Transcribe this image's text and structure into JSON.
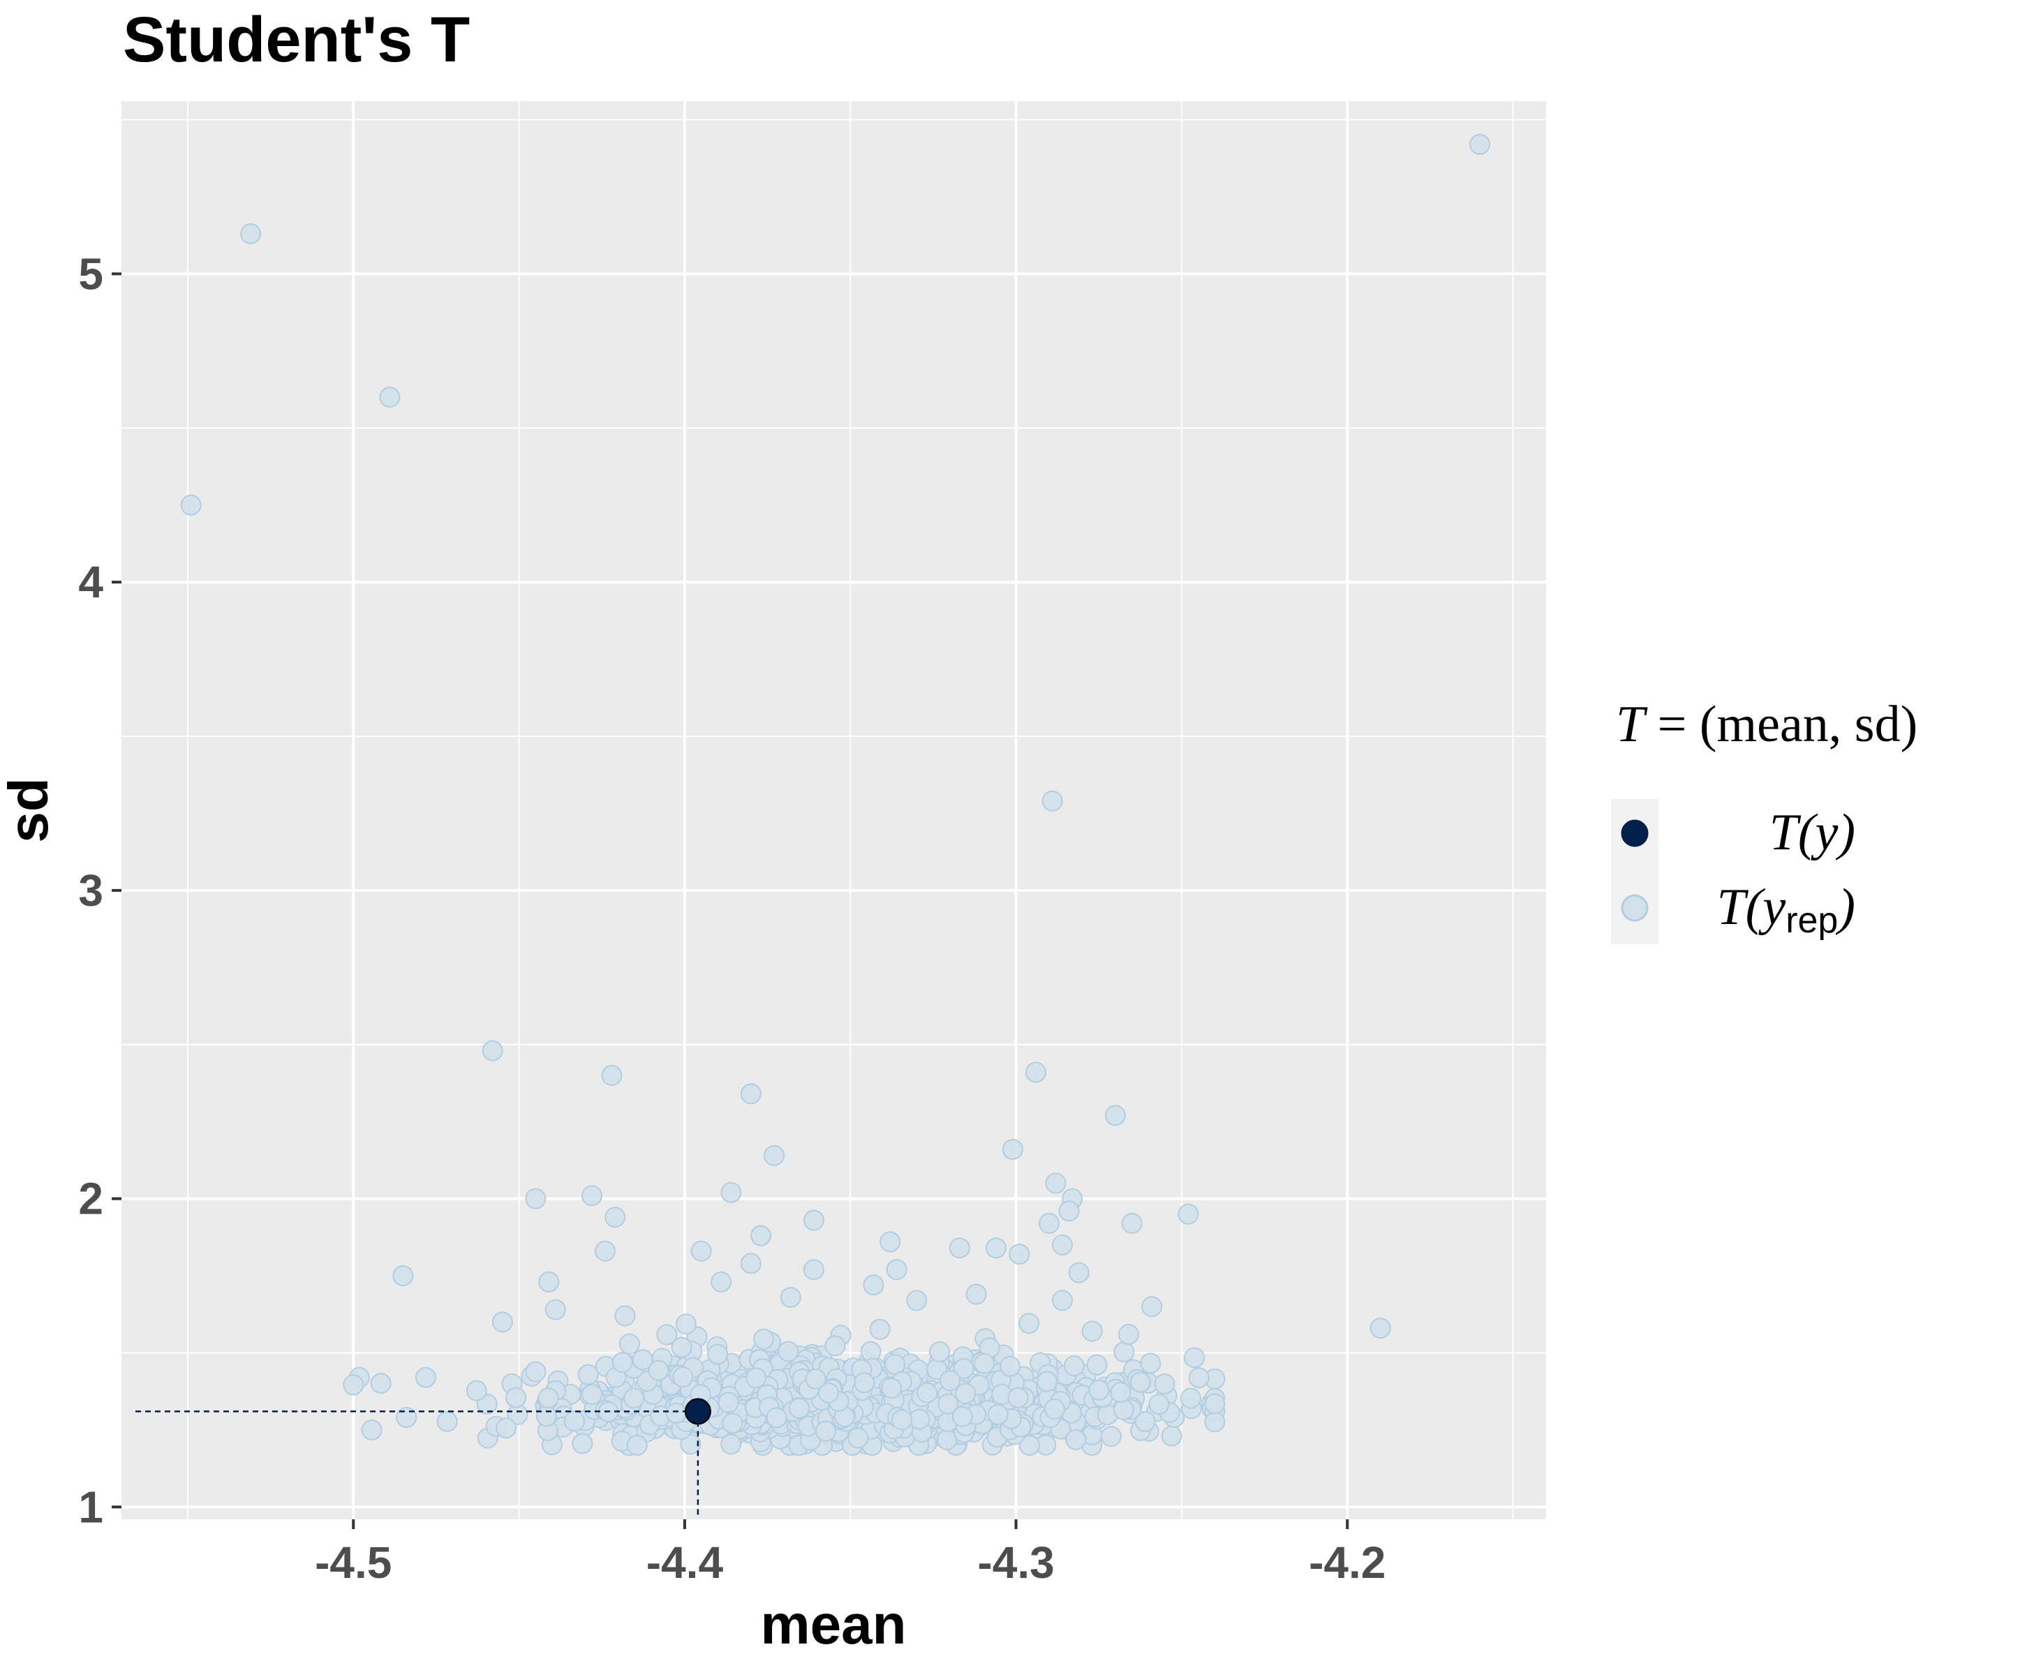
{
  "chart_data": {
    "type": "scatter",
    "title": "Student's T",
    "xlabel": "mean",
    "ylabel": "sd",
    "xlim": [
      -4.57,
      -4.14
    ],
    "ylim": [
      0.96,
      5.56
    ],
    "x_ticks": [
      -4.5,
      -4.4,
      -4.3,
      -4.2
    ],
    "x_tick_labels": [
      "-4.5",
      "-4.4",
      "-4.3",
      "-4.2"
    ],
    "y_ticks": [
      1,
      2,
      3,
      4,
      5
    ],
    "y_tick_labels": [
      "1",
      "2",
      "3",
      "4",
      "5"
    ],
    "grid": true,
    "background": "#ebebeb",
    "legend": {
      "placement": "right",
      "title_italic": "T",
      "title_rest": " = (mean, sd)",
      "entries": [
        {
          "main": "T(y)",
          "sub": "",
          "color": "#011f4b"
        },
        {
          "main": "T(y",
          "sub": "rep",
          "color": "#d1e1ec"
        }
      ]
    },
    "observed": {
      "name": "T(y)",
      "x": -4.396,
      "y": 1.31,
      "color": "#011f4b"
    },
    "replicated": {
      "name": "T(y_rep)",
      "color": "#d1e1ec",
      "stroke": "#b3cde0",
      "outliers": [
        [
          -4.16,
          5.42
        ],
        [
          -4.531,
          5.13
        ],
        [
          -4.489,
          4.6
        ],
        [
          -4.549,
          4.25
        ],
        [
          -4.289,
          3.29
        ],
        [
          -4.458,
          2.48
        ],
        [
          -4.294,
          2.41
        ],
        [
          -4.422,
          2.4
        ],
        [
          -4.38,
          2.34
        ],
        [
          -4.27,
          2.27
        ],
        [
          -4.301,
          2.16
        ],
        [
          -4.373,
          2.14
        ],
        [
          -4.288,
          2.05
        ],
        [
          -4.386,
          2.02
        ],
        [
          -4.428,
          2.01
        ],
        [
          -4.445,
          2.0
        ],
        [
          -4.283,
          2.0
        ],
        [
          -4.284,
          1.96
        ],
        [
          -4.421,
          1.94
        ],
        [
          -4.248,
          1.95
        ],
        [
          -4.361,
          1.93
        ],
        [
          -4.265,
          1.92
        ],
        [
          -4.29,
          1.92
        ],
        [
          -4.377,
          1.88
        ],
        [
          -4.338,
          1.86
        ],
        [
          -4.286,
          1.85
        ],
        [
          -4.424,
          1.83
        ],
        [
          -4.317,
          1.84
        ],
        [
          -4.306,
          1.84
        ],
        [
          -4.299,
          1.82
        ],
        [
          -4.395,
          1.83
        ],
        [
          -4.485,
          1.75
        ],
        [
          -4.336,
          1.77
        ],
        [
          -4.361,
          1.77
        ],
        [
          -4.38,
          1.79
        ],
        [
          -4.281,
          1.76
        ],
        [
          -4.19,
          1.58
        ],
        [
          -4.441,
          1.73
        ],
        [
          -4.343,
          1.72
        ],
        [
          -4.389,
          1.73
        ],
        [
          -4.259,
          1.65
        ],
        [
          -4.312,
          1.69
        ],
        [
          -4.33,
          1.67
        ],
        [
          -4.368,
          1.68
        ],
        [
          -4.418,
          1.62
        ],
        [
          -4.439,
          1.64
        ],
        [
          -4.455,
          1.6
        ],
        [
          -4.286,
          1.67
        ],
        [
          -4.266,
          1.56
        ],
        [
          -4.277,
          1.57
        ]
      ],
      "cluster": {
        "n": 1300,
        "x_mean": -4.352,
        "x_sd": 0.042,
        "y_mean": 1.33,
        "y_sd": 0.065
      }
    }
  }
}
